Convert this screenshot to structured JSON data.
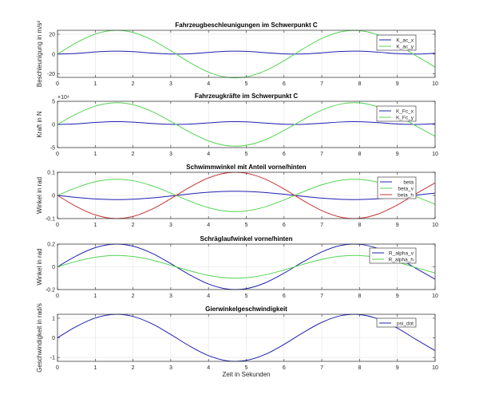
{
  "chart_data": [
    {
      "type": "line",
      "title": "Fahrzeugbeschleunigungen im Schwerpunkt C",
      "xlabel": "",
      "ylabel": "Beschleunigung in m/s²",
      "xlim": [
        0,
        10
      ],
      "ylim": [
        -23.5,
        24
      ],
      "xticks": [
        "0",
        "1",
        "2",
        "3",
        "4",
        "5",
        "6",
        "7",
        "8",
        "9",
        "10"
      ],
      "yticks": [
        {
          "v": -20,
          "label": "-20"
        },
        {
          "v": 0,
          "label": "0"
        },
        {
          "v": 20,
          "label": "20"
        }
      ],
      "exponent_label": "",
      "grid": true,
      "legend_position": "top-right",
      "series": [
        {
          "name": "K_ac_x",
          "color": "#1f1fb0",
          "values": [
            0,
            0.69,
            2.12,
            2.98,
            2.48,
            1.07,
            0.06,
            0.37,
            1.72,
            2.87,
            2.76,
            1.49,
            0.23,
            0.14,
            1.3,
            2.64,
            2.93,
            1.91,
            0.51,
            0.02,
            0.89
          ]
        },
        {
          "name": "K_ac_y",
          "color": "#55d455",
          "values": [
            0,
            11.5,
            20.2,
            23.9,
            21.8,
            14.4,
            3.4,
            -8.4,
            -18.2,
            -23.5,
            -23.0,
            -16.9,
            -6.7,
            5.2,
            15.8,
            22.5,
            23.7,
            19.2,
            9.9,
            -1.8,
            -13.1
          ]
        }
      ]
    },
    {
      "type": "line",
      "title": "Fahrzeugkräfte im Schwerpunkt C",
      "xlabel": "",
      "ylabel": "Kraft in N",
      "xlim": [
        0,
        10
      ],
      "ylim": [
        -50000,
        50000
      ],
      "xticks": [
        "0",
        "1",
        "2",
        "3",
        "4",
        "5",
        "6",
        "7",
        "8",
        "9",
        "10"
      ],
      "yticks": [
        {
          "v": -50000,
          "label": "-5"
        },
        {
          "v": 0,
          "label": "0"
        },
        {
          "v": 50000,
          "label": "5"
        }
      ],
      "exponent_label": "×10⁴",
      "grid": true,
      "legend_position": "top-right",
      "series": [
        {
          "name": "K_Fc_x",
          "color": "#1f1fb0",
          "values": [
            0,
            1374,
            4248,
            5964,
            4956,
            2148,
            120,
            738,
            3438,
            5736,
            5520,
            2988,
            468,
            276,
            2592,
            5280,
            5868,
            3822,
            1020,
            36,
            1776
          ]
        },
        {
          "name": "K_Fc_y",
          "color": "#55d455",
          "values": [
            0,
            22513,
            39527,
            46859,
            42723,
            28106,
            6627,
            -16497,
            -35579,
            -45966,
            -45073,
            -33182,
            -13113,
            10105,
            30879,
            44086,
            46483,
            37506,
            19364,
            -3525,
            -25568
          ]
        }
      ]
    },
    {
      "type": "line",
      "title": "Schwimmwinkel mit Anteil vorne/hinten",
      "xlabel": "",
      "ylabel": "Winkel in rad",
      "xlim": [
        0,
        10
      ],
      "ylim": [
        -0.1,
        0.1
      ],
      "xticks": [
        "0",
        "1",
        "2",
        "3",
        "4",
        "5",
        "6",
        "7",
        "8",
        "9",
        "10"
      ],
      "yticks": [
        {
          "v": -0.1,
          "label": "-0.1"
        },
        {
          "v": 0,
          "label": "0"
        },
        {
          "v": 0.1,
          "label": "0.1"
        }
      ],
      "exponent_label": "",
      "grid": true,
      "legend_position": "top-right",
      "series": [
        {
          "name": "beta",
          "color": "#1f1fb0",
          "values": [
            0,
            -0.0086,
            -0.0151,
            -0.0179,
            -0.0164,
            -0.0108,
            -0.0025,
            0.0063,
            0.0136,
            0.0176,
            0.0173,
            0.0127,
            0.005,
            -0.0039,
            -0.0118,
            -0.0169,
            -0.0178,
            -0.0144,
            -0.0074,
            0.0014,
            0.0098
          ]
        },
        {
          "name": "beta_v",
          "color": "#55d455",
          "values": [
            0,
            0.0335,
            0.0589,
            0.0698,
            0.0636,
            0.0419,
            0.0099,
            -0.0246,
            -0.053,
            -0.0685,
            -0.0671,
            -0.0494,
            -0.0195,
            0.0151,
            0.046,
            0.0657,
            0.0692,
            0.0559,
            0.0288,
            -0.0053,
            -0.0381
          ]
        },
        {
          "name": "beta_h",
          "color": "#c43434",
          "values": [
            0,
            -0.0479,
            -0.0841,
            -0.0997,
            -0.0909,
            -0.0598,
            -0.0141,
            0.0351,
            0.0757,
            0.0978,
            0.0959,
            0.0706,
            0.0279,
            -0.0215,
            -0.0657,
            -0.0938,
            -0.0989,
            -0.0798,
            -0.0412,
            0.0075,
            0.0544
          ]
        }
      ]
    },
    {
      "type": "line",
      "title": "Schräglaufwinkel vorne/hinten",
      "xlabel": "",
      "ylabel": "Winkel in rad",
      "xlim": [
        0,
        10
      ],
      "ylim": [
        -0.2,
        0.2
      ],
      "xticks": [
        "0",
        "1",
        "2",
        "3",
        "4",
        "5",
        "6",
        "7",
        "8",
        "9",
        "10"
      ],
      "yticks": [
        {
          "v": -0.2,
          "label": "-0.2"
        },
        {
          "v": 0,
          "label": "0"
        },
        {
          "v": 0.2,
          "label": "0.2"
        }
      ],
      "exponent_label": "",
      "grid": true,
      "legend_position": "top-right",
      "series": [
        {
          "name": "R_alpha_v",
          "color": "#1f1fb0",
          "values": [
            0,
            0.0958,
            0.1682,
            0.1994,
            0.1818,
            0.1196,
            0.0282,
            -0.0702,
            -0.1514,
            -0.1956,
            -0.1918,
            -0.1412,
            -0.0558,
            0.043,
            0.1314,
            0.1876,
            0.1978,
            0.1596,
            0.0824,
            -0.015,
            -0.1088
          ]
        },
        {
          "name": "R_alpha_h",
          "color": "#55d455",
          "values": [
            0,
            0.0479,
            0.0841,
            0.0997,
            0.0909,
            0.0598,
            0.0141,
            -0.0351,
            -0.0757,
            -0.0978,
            -0.0959,
            -0.0706,
            -0.0279,
            0.0215,
            0.0657,
            0.0938,
            0.0989,
            0.0798,
            0.0412,
            -0.0075,
            -0.0544
          ]
        }
      ]
    },
    {
      "type": "line",
      "title": "Gierwinkelgeschwindigkeit",
      "xlabel": "Zeit in Sekunden",
      "ylabel": "Geschwindigkeit in rad/s",
      "xlim": [
        0,
        10
      ],
      "ylim": [
        -1.2,
        1.2
      ],
      "xticks": [
        "0",
        "1",
        "2",
        "3",
        "4",
        "5",
        "6",
        "7",
        "8",
        "9",
        "10"
      ],
      "yticks": [
        {
          "v": -1,
          "label": "-1"
        },
        {
          "v": 0,
          "label": "0"
        },
        {
          "v": 1,
          "label": "1"
        }
      ],
      "exponent_label": "",
      "grid": true,
      "legend_position": "top-right",
      "series": [
        {
          "name": "psi_dot",
          "color": "#1f1fb0",
          "values": [
            0,
            0.575,
            1.009,
            1.196,
            1.091,
            0.718,
            0.169,
            -0.421,
            -0.908,
            -1.174,
            -1.151,
            -0.847,
            -0.335,
            0.258,
            0.788,
            1.126,
            1.187,
            0.958,
            0.494,
            -0.09,
            -0.653
          ]
        }
      ]
    }
  ],
  "x": [
    0,
    0.5,
    1,
    1.5,
    2,
    2.5,
    3,
    3.5,
    4,
    4.5,
    5,
    5.5,
    6,
    6.5,
    7,
    7.5,
    8,
    8.5,
    9,
    9.5,
    10
  ]
}
